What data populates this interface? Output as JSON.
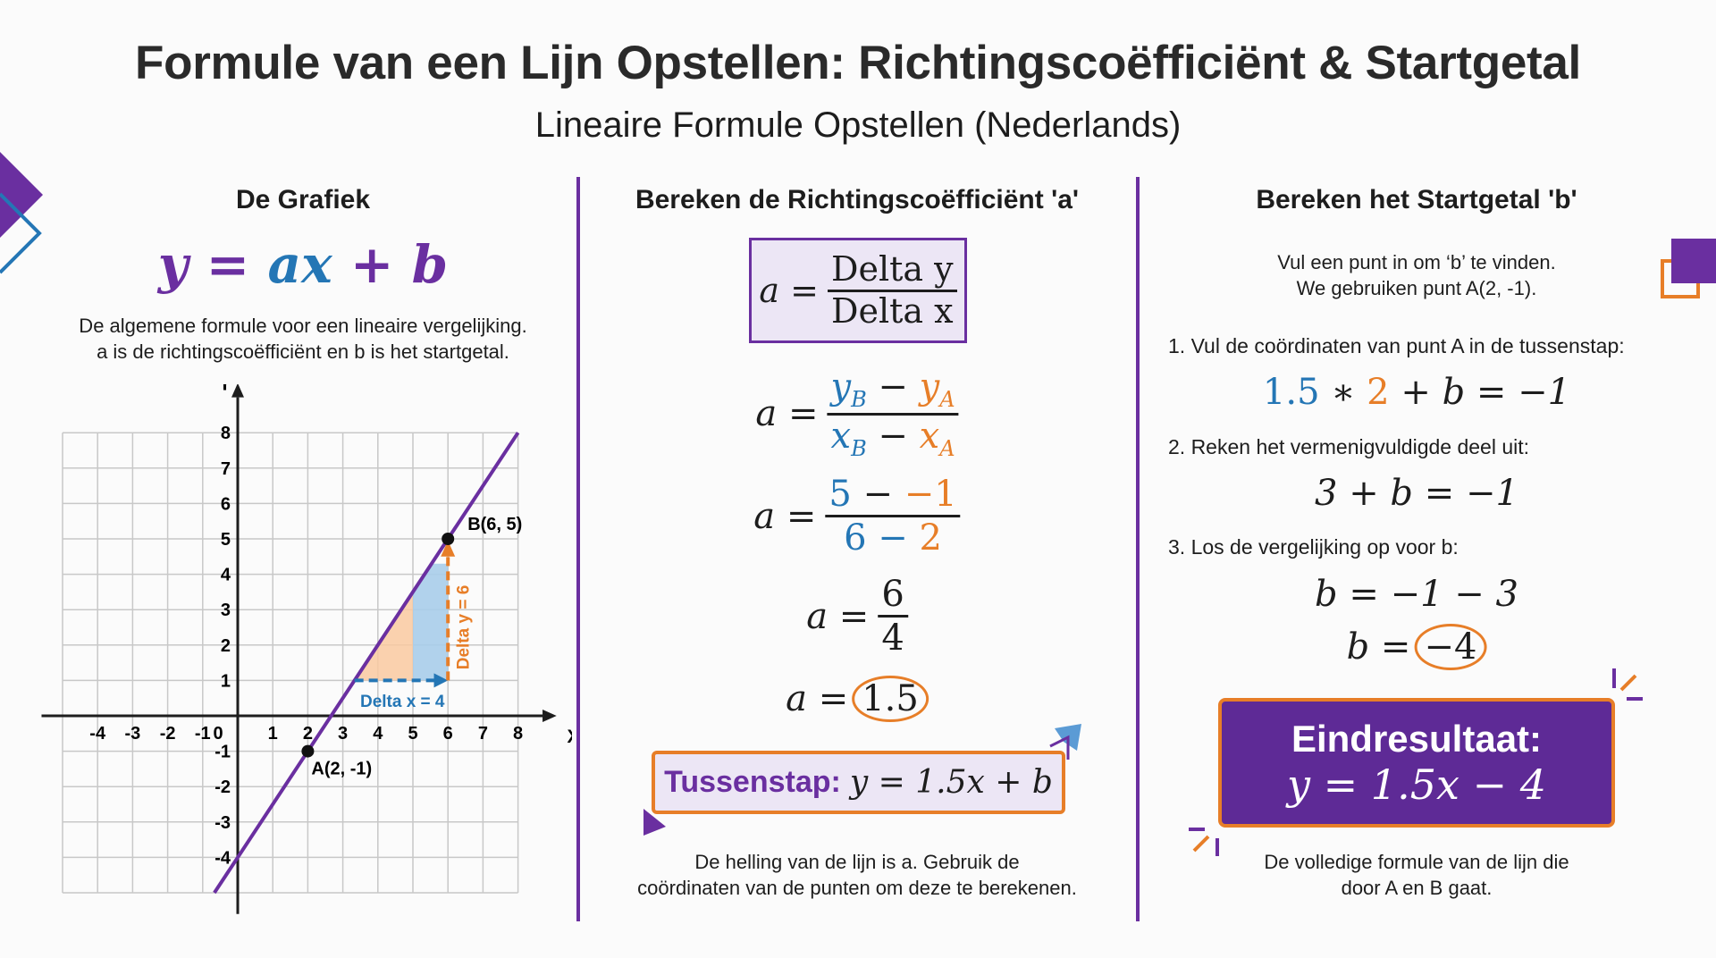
{
  "header": {
    "title": "Formule van een Lijn Opstellen: Richtingscoëfficiënt & Startgetal",
    "subtitle": "Lineaire Formule Opstellen (Nederlands)"
  },
  "colors": {
    "purple": "#6a2fa0",
    "blue": "#2476b5",
    "orange": "#e77e28",
    "dark_purple": "#5e2a96"
  },
  "col1": {
    "heading": "De Grafiek",
    "formula": {
      "y": "y",
      "eq": "=",
      "ax": "ax",
      "plus": "+",
      "b": "b"
    },
    "desc": [
      "De algemene formule voor een lineaire vergelijking.",
      "a is de richtingscoëfficiënt en b is het startgetal."
    ]
  },
  "chart_data": {
    "type": "line",
    "xlabel": "X",
    "ylabel": "Y",
    "xlim": [
      -5,
      8
    ],
    "ylim": [
      -5,
      8
    ],
    "grid": true,
    "x_ticks": [
      "-4",
      "-3",
      "-2",
      "-1",
      "0",
      "1",
      "2",
      "3",
      "4",
      "5",
      "6",
      "7",
      "8"
    ],
    "y_ticks": [
      "8",
      "7",
      "6",
      "5",
      "4",
      "3",
      "2",
      "1",
      "-1",
      "-2",
      "-3",
      "-4"
    ],
    "line": {
      "slope": 1.5,
      "intercept": -4,
      "x_range": [
        -0.667,
        8
      ]
    },
    "points": [
      {
        "label": "A(2, -1)",
        "x": 2,
        "y": -1
      },
      {
        "label": "B(6, 5)",
        "x": 6,
        "y": 5
      }
    ],
    "annotations": {
      "delta_x": "Delta x = 4",
      "delta_y": "Delta y = 6"
    }
  },
  "col2": {
    "heading": "Bereken de Richtingscoëfficiënt 'a'",
    "box": {
      "lhs": "a =",
      "num": "Delta y",
      "den": "Delta x"
    },
    "eq2": {
      "lhs": "a =",
      "num_b": "y",
      "num_b_sub": "B",
      "minus": " − ",
      "num_a": "y",
      "num_a_sub": "A",
      "den_b": "x",
      "den_b_sub": "B",
      "den_a": "x",
      "den_a_sub": "A"
    },
    "eq3": {
      "lhs": "a =",
      "n1": "5",
      "minus1": " − ",
      "n2": "−1",
      "d1": "6",
      "minus2": " − ",
      "d2": "2"
    },
    "eq4": {
      "lhs": "a =",
      "num": "6",
      "den": "4"
    },
    "eq5": {
      "lhs": "a =",
      "value": "1.5"
    },
    "tussenstap": {
      "label": "Tussenstap:",
      "formula": "y = 1.5x + b"
    },
    "desc": [
      "De helling van de lijn is a. Gebruik de",
      "coördinaten van de punten om deze te berekenen."
    ]
  },
  "col3": {
    "heading": "Bereken het Startgetal 'b'",
    "intro": [
      "Vul een punt in om ‘b’ te vinden.",
      "We gebruiken punt A(2, -1)."
    ],
    "step1": "1. Vul de coördinaten van punt A in de tussenstap:",
    "eq1": {
      "a": "1.5",
      "times": " ∗ ",
      "x": "2",
      "rest": " + b = −1"
    },
    "step2": "2. Reken het vermenigvuldigde deel uit:",
    "eq2": "3 + b = −1",
    "step3": "3. Los de vergelijking op voor b:",
    "eq3": "b = −1 − 3",
    "eq4": {
      "lhs": "b =",
      "value": "−4"
    },
    "result": {
      "label": "Eindresultaat:",
      "formula": "y = 1.5x − 4"
    },
    "desc": [
      "De volledige formule van de lijn die",
      "door A en B gaat."
    ]
  }
}
